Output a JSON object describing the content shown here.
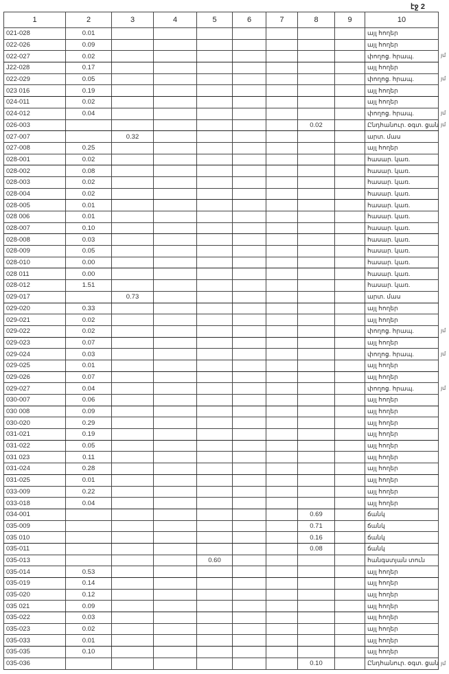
{
  "page_label": "էջ 2",
  "columns": [
    "1",
    "2",
    "3",
    "4",
    "5",
    "6",
    "7",
    "8",
    "9",
    "10"
  ],
  "rows": [
    {
      "c1": "021-028",
      "c2": "0.01",
      "c10": "այլ հողեր"
    },
    {
      "c1": "022-026",
      "c2": "0.09",
      "c10": "այլ հողեր"
    },
    {
      "c1": "022-027",
      "c2": "0.02",
      "c10": "փողոց. հրապ.",
      "mark": "յմ"
    },
    {
      "c1": "J22-028",
      "c2": "0.17",
      "c10": "այլ հողեր"
    },
    {
      "c1": "022-029",
      "c2": "0.05",
      "c10": "փողոց. հրապ.",
      "mark": "յմ"
    },
    {
      "c1": "023 016",
      "c2": "0.19",
      "c10": "այլ հողեր"
    },
    {
      "c1": "024-011",
      "c2": "0.02",
      "c10": "այլ հողեր"
    },
    {
      "c1": "024-012",
      "c2": "0.04",
      "c10": "փողոց. հրապ.",
      "mark": "յմ"
    },
    {
      "c1": "026-003",
      "c8": "0.02",
      "c10": "Ընդհանուր. օգտ. ցանց",
      "mark": "յմ"
    },
    {
      "c1": "027-007",
      "c3": "0.32",
      "c10": "արտ. մաս"
    },
    {
      "c1": "027-008",
      "c2": "0.25",
      "c10": "այլ հողեր"
    },
    {
      "c1": "028-001",
      "c2": "0.02",
      "c10": "հասար. կառ."
    },
    {
      "c1": "028-002",
      "c2": "0.08",
      "c10": "հասար. կառ."
    },
    {
      "c1": "028-003",
      "c2": "0.02",
      "c10": "հասար. կառ."
    },
    {
      "c1": "028-004",
      "c2": "0.02",
      "c10": "հասար. կառ."
    },
    {
      "c1": "028-005",
      "c2": "0.01",
      "c10": "հասար. կառ."
    },
    {
      "c1": "028 006",
      "c2": "0.01",
      "c10": "հասար. կառ."
    },
    {
      "c1": "028-007",
      "c2": "0.10",
      "c10": "հասար. կառ."
    },
    {
      "c1": "028-008",
      "c2": "0.03",
      "c10": "հասար. կառ."
    },
    {
      "c1": "028-009",
      "c2": "0.05",
      "c10": "հասար. կառ."
    },
    {
      "c1": "028-010",
      "c2": "0.00",
      "c10": "հասար. կառ."
    },
    {
      "c1": "028 011",
      "c2": "0.00",
      "c10": "հասար. կառ."
    },
    {
      "c1": "028-012",
      "c2": "1.51",
      "c10": "հասար. կառ."
    },
    {
      "c1": "029-017",
      "c3": "0.73",
      "c10": "արտ. մաս"
    },
    {
      "c1": "029-020",
      "c2": "0.33",
      "c10": "այլ հողեր"
    },
    {
      "c1": "029-021",
      "c2": "0.02",
      "c10": "այլ հողեր"
    },
    {
      "c1": "029-022",
      "c2": "0.02",
      "c10": "փողոց. հրապ.",
      "mark": "յմ"
    },
    {
      "c1": "029-023",
      "c2": "0.07",
      "c10": "այլ հողեր"
    },
    {
      "c1": "029-024",
      "c2": "0.03",
      "c10": "փողոց. հրապ.",
      "mark": "յմ"
    },
    {
      "c1": "029-025",
      "c2": "0.01",
      "c10": "այլ հողեր"
    },
    {
      "c1": "029-026",
      "c2": "0.07",
      "c10": "այլ հողեր"
    },
    {
      "c1": "029-027",
      "c2": "0.04",
      "c10": "փողոց. հրապ.",
      "mark": "յմ"
    },
    {
      "c1": "030-007",
      "c2": "0.06",
      "c10": "այլ հողեր"
    },
    {
      "c1": "030 008",
      "c2": "0.09",
      "c10": "այլ հողեր"
    },
    {
      "c1": "030-020",
      "c2": "0.29",
      "c10": "այլ հողեր"
    },
    {
      "c1": "031-021",
      "c2": "0.19",
      "c10": "այլ հողեր"
    },
    {
      "c1": "031-022",
      "c2": "0.05",
      "c10": "այլ հողեր"
    },
    {
      "c1": "031 023",
      "c2": "0.11",
      "c10": "այլ հողեր"
    },
    {
      "c1": "031-024",
      "c2": "0.28",
      "c10": "այլ հողեր"
    },
    {
      "c1": "031-025",
      "c2": "0.01",
      "c10": "այլ հողեր"
    },
    {
      "c1": "033-009",
      "c2": "0.22",
      "c10": "այլ հողեր"
    },
    {
      "c1": "033-018",
      "c2": "0.04",
      "c10": "այլ հողեր"
    },
    {
      "c1": "034-001",
      "c8": "0.69",
      "c10": "ճանկ"
    },
    {
      "c1": "035-009",
      "c8": "0.71",
      "c10": "ճանկ"
    },
    {
      "c1": "035 010",
      "c8": "0.16",
      "c10": "ճանկ"
    },
    {
      "c1": "035-011",
      "c8": "0.08",
      "c10": "ճանկ"
    },
    {
      "c1": "035-013",
      "c5": "0.60",
      "c10": "հանգստյան տուն"
    },
    {
      "c1": "035-014",
      "c2": "0.53",
      "c10": "այլ հողեր"
    },
    {
      "c1": "035-019",
      "c2": "0.14",
      "c10": "այլ հողեր"
    },
    {
      "c1": "035-020",
      "c2": "0.12",
      "c10": "այլ հողեր"
    },
    {
      "c1": "035 021",
      "c2": "0.09",
      "c10": "այլ հողեր"
    },
    {
      "c1": "035-022",
      "c2": "0.03",
      "c10": "այլ հողեր"
    },
    {
      "c1": "035-023",
      "c2": "0.02",
      "c10": "այլ հողեր"
    },
    {
      "c1": "035-033",
      "c2": "0.01",
      "c10": "այլ հողեր"
    },
    {
      "c1": "035-035",
      "c2": "0.10",
      "c10": "այլ հողեր"
    },
    {
      "c1": "035-036",
      "c8": "0.10",
      "c10": "Ընդհանուր. օգտ. ցանց",
      "mark": "յմ"
    }
  ]
}
